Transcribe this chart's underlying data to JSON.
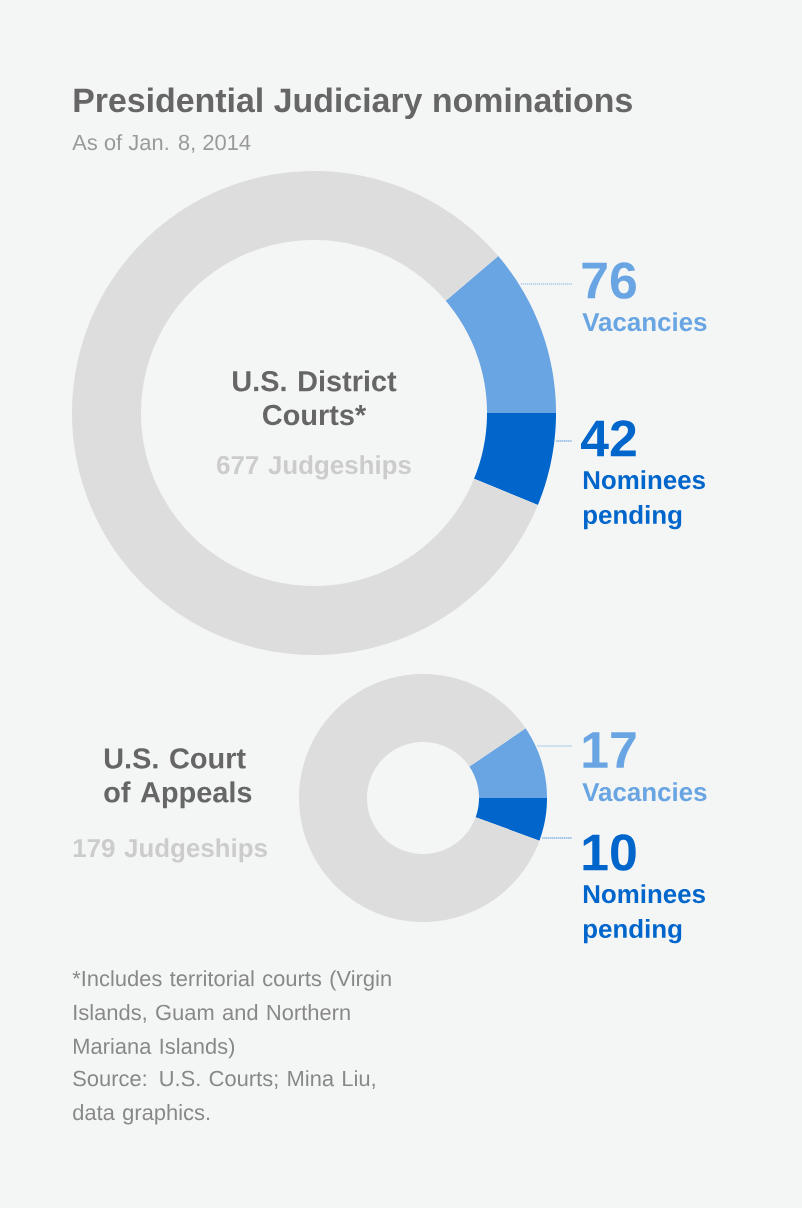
{
  "chart_data": [
    {
      "type": "donut",
      "title": "Presidential Judiciary nominations",
      "subtitle": "As of Jan. 8, 2014",
      "categories": [
        "Vacancies",
        "Nominees pending",
        null
      ],
      "values": [
        76,
        42,
        559
      ],
      "value_labels": [
        "76",
        "42",
        null
      ],
      "colors": [
        "#69a5e2",
        "#0066cc",
        "#dddddd"
      ],
      "annotations": [
        "U.S. District Courts*",
        "677 Judgeships"
      ]
    },
    {
      "type": "donut",
      "categories": [
        "Vacancies",
        "Nominees pending",
        null
      ],
      "values": [
        17,
        10,
        152
      ],
      "value_labels": [
        "17",
        "10",
        null
      ],
      "colors": [
        "#69a5e2",
        "#0066cc",
        "#dddddd"
      ],
      "annotations": [
        "U.S. Court of Appeals",
        "179 Judgeships",
        "*Includes territorial courts (Virgin Islands, Guam and Northern Mariana Islands)",
        "Source: U.S. Courts; Mina Liu, data graphics."
      ]
    }
  ]
}
